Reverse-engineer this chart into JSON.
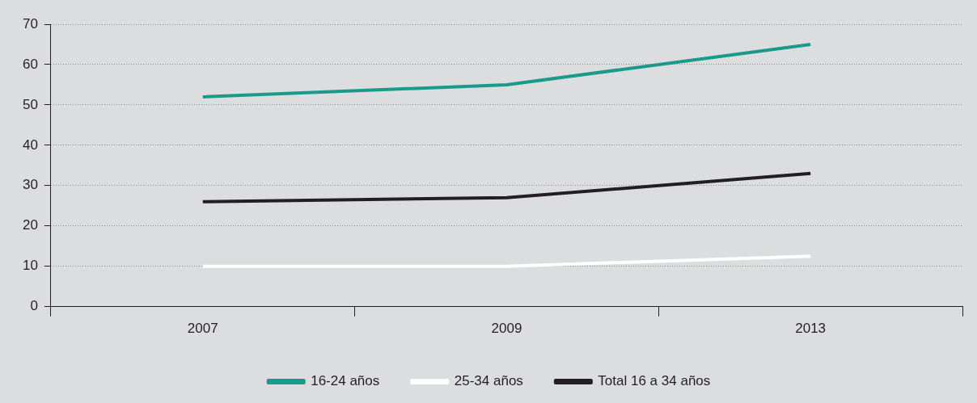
{
  "chart_data": {
    "type": "line",
    "categories": [
      "2007",
      "2009",
      "2013"
    ],
    "series": [
      {
        "name": "16-24 años",
        "color": "#1a9a8a",
        "values": [
          52,
          55,
          65
        ]
      },
      {
        "name": "25-34 años",
        "color": "#ffffff",
        "values": [
          10,
          10,
          12.5
        ]
      },
      {
        "name": "Total 16 a 34 años",
        "color": "#231f20",
        "values": [
          26,
          27,
          33
        ]
      }
    ],
    "ylim": [
      0,
      70
    ],
    "yticks": [
      0,
      10,
      20,
      30,
      40,
      50,
      60,
      70
    ],
    "grid": "y",
    "legend": "bottom",
    "marker": "none",
    "line_style": "solid"
  }
}
